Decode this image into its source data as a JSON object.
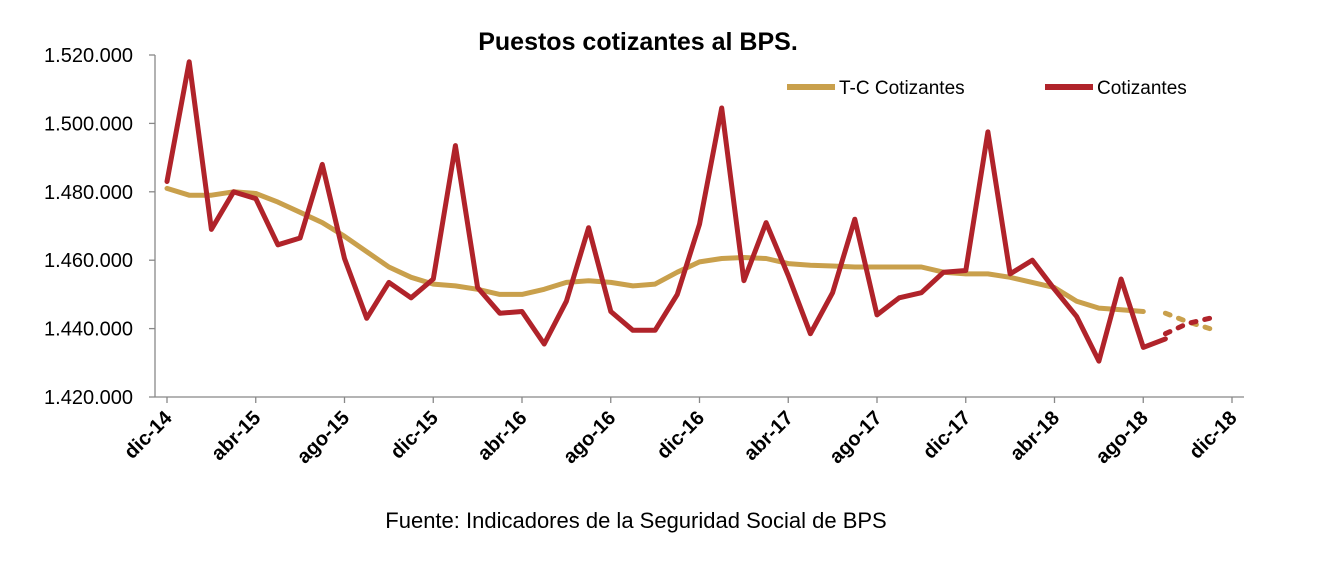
{
  "chart_data": {
    "type": "line",
    "title": "Puestos cotizantes al BPS.",
    "source": "Fuente: Indicadores de la Seguridad Social de BPS",
    "xlabel": "",
    "ylabel": "",
    "ylim": [
      1420000,
      1520000
    ],
    "yticks": [
      1420000,
      1440000,
      1460000,
      1480000,
      1500000,
      1520000
    ],
    "ytick_labels": [
      "1.420.000",
      "1.440.000",
      "1.460.000",
      "1.480.000",
      "1.500.000",
      "1.520.000"
    ],
    "x": [
      "dic-14",
      "ene-15",
      "feb-15",
      "mar-15",
      "abr-15",
      "may-15",
      "jun-15",
      "jul-15",
      "ago-15",
      "sep-15",
      "oct-15",
      "nov-15",
      "dic-15",
      "ene-16",
      "feb-16",
      "mar-16",
      "abr-16",
      "may-16",
      "jun-16",
      "jul-16",
      "ago-16",
      "sep-16",
      "oct-16",
      "nov-16",
      "dic-16",
      "ene-17",
      "feb-17",
      "mar-17",
      "abr-17",
      "may-17",
      "jun-17",
      "jul-17",
      "ago-17",
      "sep-17",
      "oct-17",
      "nov-17",
      "dic-17",
      "ene-18",
      "feb-18",
      "mar-18",
      "abr-18",
      "may-18",
      "jun-18",
      "jul-18",
      "ago-18",
      "sep-18",
      "oct-18",
      "nov-18",
      "dic-18"
    ],
    "xtick_labels": [
      "dic-14",
      "abr-15",
      "ago-15",
      "dic-15",
      "abr-16",
      "ago-16",
      "dic-16",
      "abr-17",
      "ago-17",
      "dic-17",
      "abr-18",
      "ago-18",
      "dic-18"
    ],
    "xtick_every": 4,
    "legend_position": "top-right",
    "grid": false,
    "series": [
      {
        "name": "T-C Cotizantes",
        "color": "#C9A04C",
        "values": [
          1481000,
          1479000,
          1479000,
          1480000,
          1479500,
          1477000,
          1474000,
          1471000,
          1467000,
          1462500,
          1458000,
          1455000,
          1453000,
          1452500,
          1451500,
          1450000,
          1450000,
          1451500,
          1453500,
          1454000,
          1453500,
          1452500,
          1453000,
          1456500,
          1459500,
          1460500,
          1460800,
          1460500,
          1459000,
          1458500,
          1458300,
          1458000,
          1458000,
          1458000,
          1458000,
          1456500,
          1456000,
          1456000,
          1455000,
          1453500,
          1452000,
          1448000,
          1446000,
          1445500,
          1445000,
          null,
          null,
          null,
          null
        ],
        "projection": [
          null,
          null,
          null,
          null,
          null,
          null,
          null,
          null,
          null,
          null,
          null,
          null,
          null,
          null,
          null,
          null,
          null,
          null,
          null,
          null,
          null,
          null,
          null,
          null,
          null,
          null,
          null,
          null,
          null,
          null,
          null,
          null,
          null,
          null,
          null,
          null,
          null,
          null,
          null,
          null,
          null,
          null,
          null,
          null,
          null,
          1444500,
          1442000,
          1440000,
          null
        ]
      },
      {
        "name": "Cotizantes",
        "color": "#B0232A",
        "values": [
          1483000,
          1518000,
          1469000,
          1480000,
          1478000,
          1464500,
          1466500,
          1488000,
          1460500,
          1443000,
          1453500,
          1449000,
          1454500,
          1493500,
          1452000,
          1444500,
          1445000,
          1435500,
          1448000,
          1469500,
          1445000,
          1439500,
          1439500,
          1450000,
          1470500,
          1504500,
          1454000,
          1471000,
          1455500,
          1438500,
          1450500,
          1472000,
          1444000,
          1449000,
          1450500,
          1456500,
          1457000,
          1497500,
          1456000,
          1460000,
          1451500,
          1443500,
          1430500,
          1454500,
          1434500,
          1437000,
          null,
          null,
          null
        ],
        "projection": [
          null,
          null,
          null,
          null,
          null,
          null,
          null,
          null,
          null,
          null,
          null,
          null,
          null,
          null,
          null,
          null,
          null,
          null,
          null,
          null,
          null,
          null,
          null,
          null,
          null,
          null,
          null,
          null,
          null,
          null,
          null,
          null,
          null,
          null,
          null,
          null,
          null,
          null,
          null,
          null,
          null,
          null,
          null,
          null,
          null,
          1438500,
          1441500,
          1443000,
          null
        ]
      }
    ]
  }
}
